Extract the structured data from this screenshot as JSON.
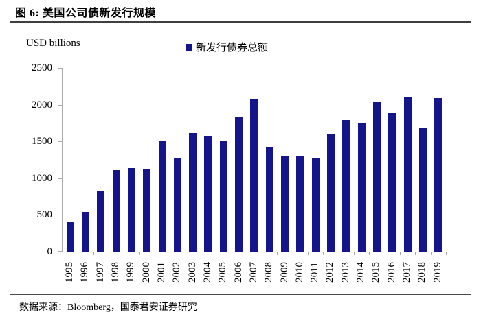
{
  "figure": {
    "title": "图 6: 美国公司债新发行规模",
    "source": "数据来源：Bloomberg，国泰君安证券研究"
  },
  "chart_data": {
    "type": "bar",
    "title": "图 6: 美国公司债新发行规模",
    "unit_label": "USD billions",
    "legend": [
      "新发行债券总额"
    ],
    "legend_position": "top-center",
    "categories": [
      "1995",
      "1996",
      "1997",
      "1998",
      "1999",
      "2000",
      "2001",
      "2002",
      "2003",
      "2004",
      "2005",
      "2006",
      "2007",
      "2008",
      "2009",
      "2010",
      "2011",
      "2012",
      "2013",
      "2014",
      "2015",
      "2016",
      "2017",
      "2018",
      "2019"
    ],
    "values": [
      400,
      540,
      820,
      1110,
      1140,
      1130,
      1510,
      1270,
      1610,
      1580,
      1510,
      1840,
      2070,
      1430,
      1310,
      1300,
      1270,
      1600,
      1790,
      1750,
      2030,
      1880,
      2100,
      1680,
      2090
    ],
    "ylim": [
      0,
      2500
    ],
    "yticks": [
      0,
      500,
      1000,
      1500,
      2000,
      2500
    ],
    "grid": false,
    "bar_color": "#14148B",
    "axis_color": "#ABABAB"
  }
}
